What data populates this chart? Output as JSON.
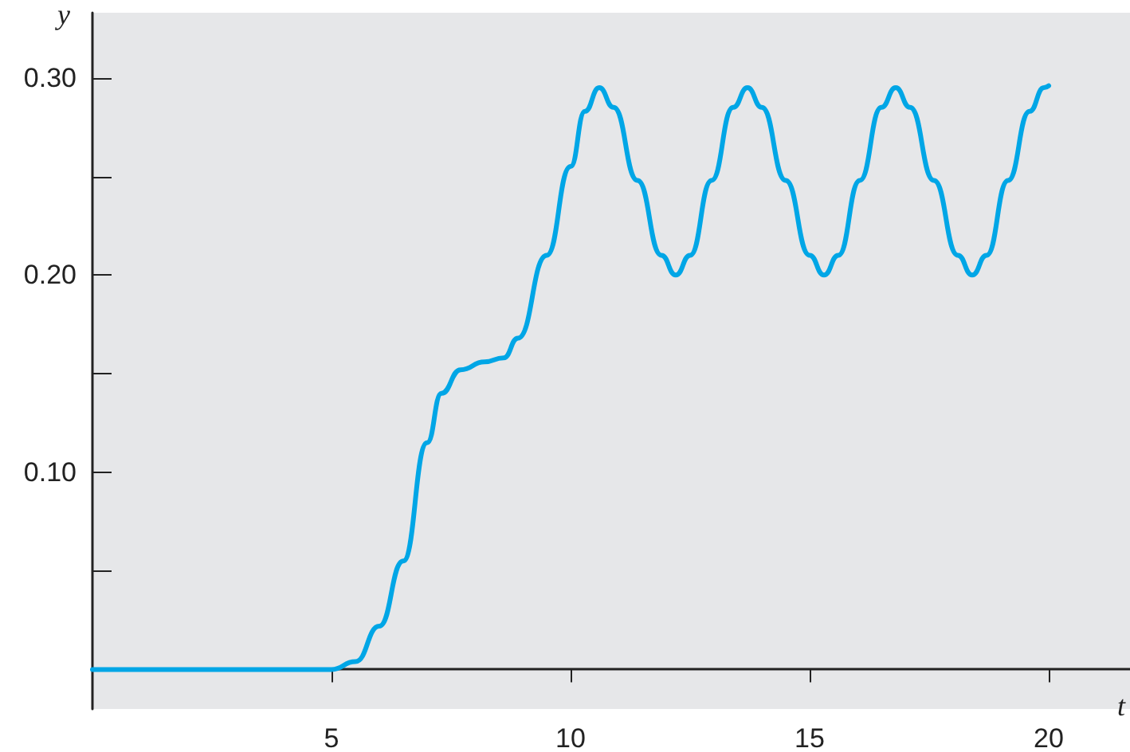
{
  "chart_data": {
    "type": "line",
    "xlabel": "t",
    "ylabel": "y",
    "x": [
      0,
      5,
      5.5,
      6,
      6.5,
      7,
      7.3,
      7.7,
      8.2,
      8.6,
      8.9,
      9.5,
      10,
      10.3,
      10.6,
      10.9,
      11.4,
      11.9,
      12.2,
      12.5,
      12.95,
      13.4,
      13.7,
      14,
      14.5,
      15,
      15.3,
      15.6,
      16.05,
      16.5,
      16.8,
      17.1,
      17.6,
      18.1,
      18.4,
      18.7,
      19.15,
      19.6,
      19.9,
      20
    ],
    "series": [
      {
        "color": "#00a6e6",
        "values": [
          0,
          0,
          0.004,
          0.022,
          0.055,
          0.115,
          0.14,
          0.152,
          0.156,
          0.158,
          0.168,
          0.21,
          0.255,
          0.283,
          0.295,
          0.285,
          0.248,
          0.21,
          0.2,
          0.21,
          0.248,
          0.285,
          0.295,
          0.285,
          0.248,
          0.21,
          0.2,
          0.21,
          0.248,
          0.285,
          0.295,
          0.285,
          0.248,
          0.21,
          0.2,
          0.21,
          0.248,
          0.283,
          0.295,
          0.296
        ]
      }
    ],
    "xlim": [
      0,
      21.7
    ],
    "ylim": [
      -0.02,
      0.333
    ],
    "xticks": [
      5,
      10,
      15,
      20
    ],
    "yticks": [
      {
        "value": 0.05,
        "label": null
      },
      {
        "value": 0.1,
        "label": "0.10"
      },
      {
        "value": 0.15,
        "label": null
      },
      {
        "value": 0.2,
        "label": "0.20"
      },
      {
        "value": 0.25,
        "label": null
      },
      {
        "value": 0.3,
        "label": "0.30"
      }
    ],
    "grid": false,
    "marker": "none",
    "line_style": "solid"
  }
}
